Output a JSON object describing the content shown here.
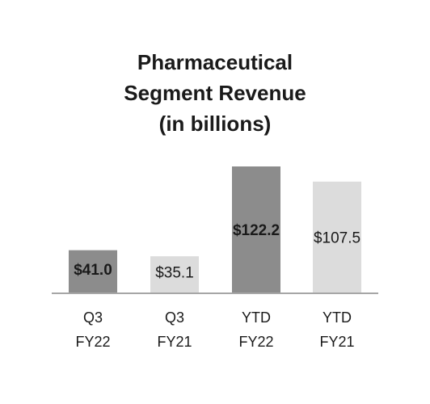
{
  "chart_data": {
    "type": "bar",
    "title_lines": [
      "Pharmaceutical",
      "Segment Revenue",
      "(in billions)"
    ],
    "categories": [
      {
        "line1": "Q3",
        "line2": "FY22"
      },
      {
        "line1": "Q3",
        "line2": "FY21"
      },
      {
        "line1": "YTD",
        "line2": "FY22"
      },
      {
        "line1": "YTD",
        "line2": "FY21"
      }
    ],
    "values": [
      41.0,
      35.1,
      122.2,
      107.5
    ],
    "data_labels": [
      "$41.0",
      "$35.1",
      "$122.2",
      "$107.5"
    ],
    "label_bold": [
      true,
      false,
      true,
      false
    ],
    "bar_colors": [
      "#8c8c8c",
      "#dcdcdc",
      "#8c8c8c",
      "#dcdcdc"
    ],
    "ylim": [
      0,
      122.2
    ],
    "grid": false,
    "axis_color": "#a6a6a6"
  }
}
